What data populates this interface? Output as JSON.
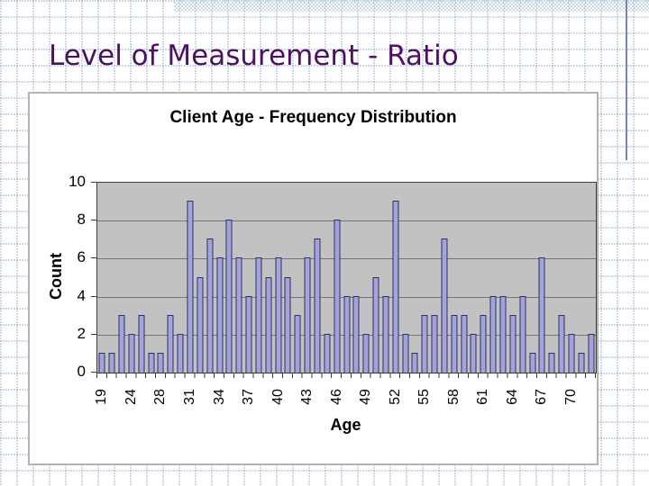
{
  "slide": {
    "title": "Level of Measurement - Ratio"
  },
  "decor": {
    "title_color": "#4e1062",
    "top_band_color": "#c8d7e8",
    "side_line_color": "#7289b3"
  },
  "chart_data": {
    "type": "bar",
    "title": "Client Age - Frequency Distribution",
    "xlabel": "Age",
    "ylabel": "Count",
    "ylim": [
      0,
      10
    ],
    "yticks": [
      0,
      2,
      4,
      6,
      8,
      10
    ],
    "grid": true,
    "legend": "none",
    "x_tick_labels": [
      "19",
      "24",
      "28",
      "31",
      "34",
      "37",
      "40",
      "43",
      "46",
      "49",
      "52",
      "55",
      "58",
      "61",
      "64",
      "67",
      "70"
    ],
    "x_tick_label_step": 3,
    "values": [
      1,
      1,
      3,
      2,
      3,
      1,
      1,
      3,
      2,
      9,
      5,
      7,
      6,
      8,
      6,
      4,
      6,
      5,
      6,
      5,
      3,
      6,
      7,
      2,
      8,
      4,
      4,
      2,
      5,
      4,
      9,
      2,
      1,
      3,
      3,
      7,
      3,
      3,
      2,
      3,
      4,
      4,
      3,
      4,
      1,
      6,
      1,
      3,
      2,
      1,
      2
    ],
    "bar_color": "#a2a2dc",
    "bar_border_color": "#30305c",
    "plot_bg": "#c2c2c2",
    "grid_color": "#757575",
    "axis_color": "#3c3c3c"
  }
}
